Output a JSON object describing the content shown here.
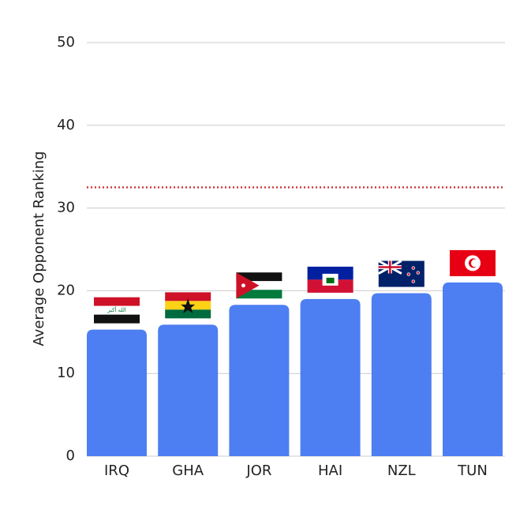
{
  "chart_data": {
    "type": "bar",
    "y_label": "Average Opponent Ranking",
    "categories": [
      "IRQ",
      "GHA",
      "JOR",
      "HAI",
      "NZL",
      "TUN"
    ],
    "values": [
      15.3,
      15.9,
      18.3,
      19.0,
      19.7,
      21.0
    ],
    "color": "#4d7ff2",
    "ylim": [
      0,
      50
    ],
    "yticks": [
      0,
      10,
      20,
      30,
      40,
      50
    ],
    "grid": true,
    "reference_line": {
      "value": 32.5,
      "color": "#d33a3a"
    }
  }
}
